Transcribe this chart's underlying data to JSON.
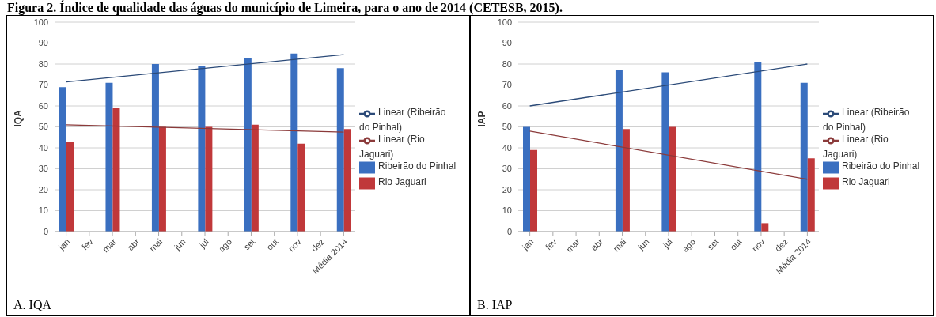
{
  "chart_data": [
    {
      "type": "bar",
      "title": "Figura 2. Índice de qualidade das águas do município de Limeira, para o ano de 2014 (CETESB, 2015).",
      "ylabel": "IQA",
      "annotations": [
        "A. IQA"
      ],
      "categories": [
        "jan",
        "fev",
        "mar",
        "abr",
        "mai",
        "jun",
        "jul",
        "ago",
        "set",
        "out",
        "nov",
        "dez",
        "Média 2014"
      ],
      "series": [
        {
          "name": "Ribeirão do Pinhal",
          "color": "#3a6fc0",
          "values": [
            69,
            null,
            71,
            null,
            80,
            null,
            79,
            null,
            83,
            null,
            85,
            null,
            78
          ]
        },
        {
          "name": "Rio Jaguari",
          "color": "#c0383a",
          "values": [
            43,
            null,
            59,
            null,
            50,
            null,
            50,
            null,
            51,
            null,
            42,
            null,
            49
          ]
        },
        {
          "name": "Linear (Ribeirão do Pinhal)",
          "type": "line",
          "color": "#2b4a78",
          "x": [
            "jan",
            "Média 2014"
          ],
          "values": [
            71.5,
            84.5
          ]
        },
        {
          "name": "Linear (Rio Jaguari)",
          "type": "line",
          "color": "#8b3a3a",
          "x": [
            "jan",
            "Média 2014"
          ],
          "values": [
            51,
            47.5
          ]
        }
      ],
      "ylim": [
        0,
        100
      ],
      "yticks": [
        0,
        10,
        20,
        30,
        40,
        50,
        60,
        70,
        80,
        90,
        100
      ],
      "grid": "y",
      "legend": "right"
    },
    {
      "type": "bar",
      "ylabel": "IAP",
      "annotations": [
        "B. IAP"
      ],
      "categories": [
        "jan",
        "fev",
        "mar",
        "abr",
        "mai",
        "jun",
        "jul",
        "ago",
        "set",
        "out",
        "nov",
        "dez",
        "Média 2014"
      ],
      "series": [
        {
          "name": "Ribeirão do Pinhal",
          "color": "#3a6fc0",
          "values": [
            50,
            null,
            null,
            null,
            77,
            null,
            76,
            null,
            null,
            null,
            81,
            null,
            71
          ]
        },
        {
          "name": "Rio Jaguari",
          "color": "#c0383a",
          "values": [
            39,
            null,
            null,
            null,
            49,
            null,
            50,
            null,
            null,
            null,
            4,
            null,
            35
          ]
        },
        {
          "name": "Linear (Ribeirão do Pinhal)",
          "type": "line",
          "color": "#2b4a78",
          "x": [
            "jan",
            "Média 2014"
          ],
          "values": [
            60,
            80
          ]
        },
        {
          "name": "Linear (Rio Jaguari)",
          "type": "line",
          "color": "#8b3a3a",
          "x": [
            "jan",
            "Média 2014"
          ],
          "values": [
            48,
            25
          ]
        }
      ],
      "ylim": [
        0,
        100
      ],
      "yticks": [
        0,
        10,
        20,
        30,
        40,
        50,
        60,
        70,
        80,
        90,
        100
      ],
      "grid": "y",
      "legend": "right"
    }
  ]
}
